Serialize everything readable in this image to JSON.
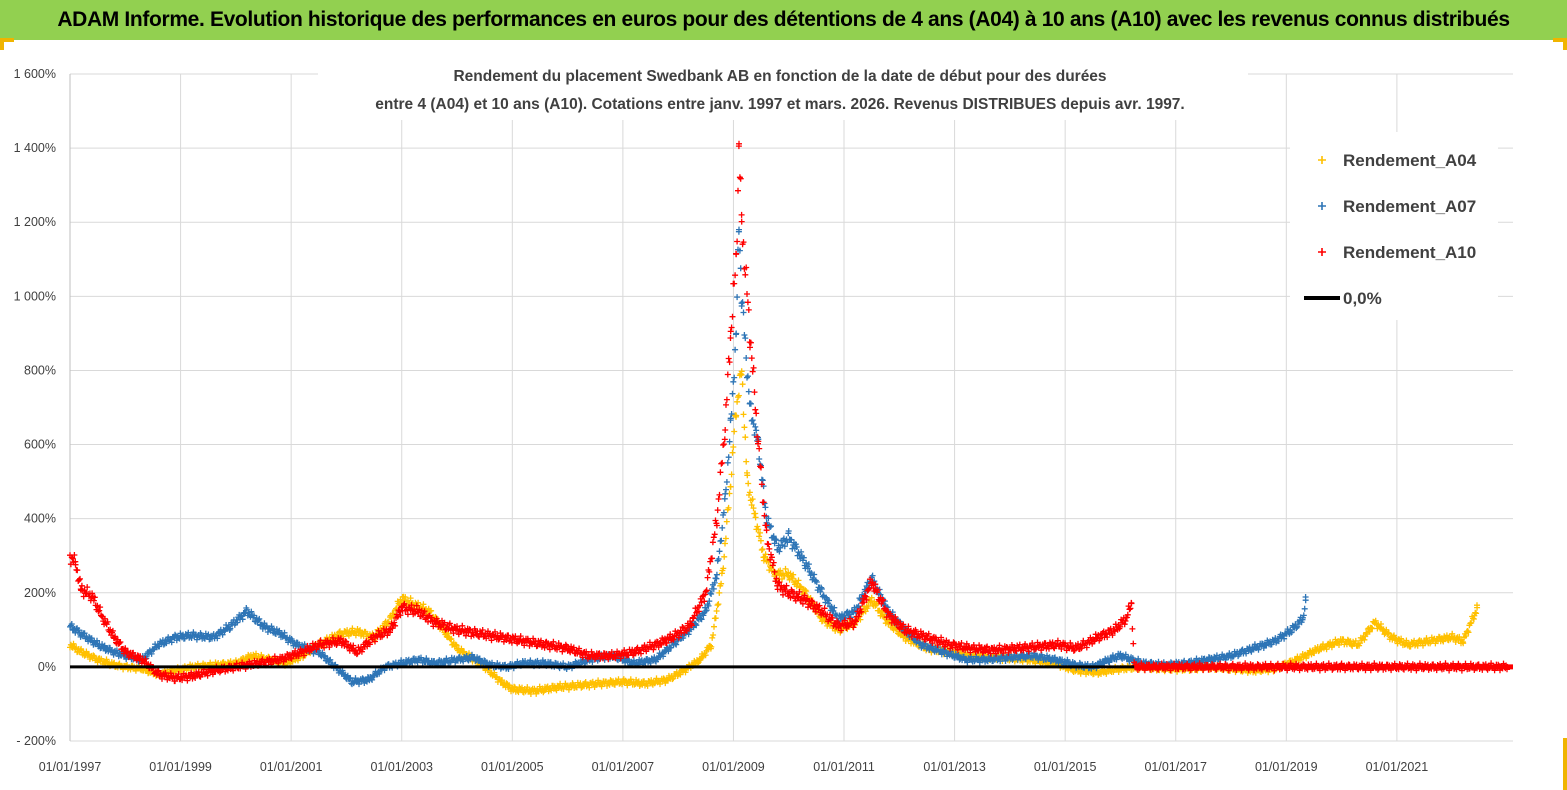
{
  "banner": {
    "title": "ADAM Informe. Evolution historique des performances en euros pour des détentions de 4 ans (A04) à 10 ans (A10) avec les revenus connus distribués"
  },
  "colors": {
    "banner_bg": "#92d050",
    "a04": "#ffc000",
    "a07": "#2e75b6",
    "a10": "#ff0000",
    "zero": "#000000",
    "grid": "#d9d9d9"
  },
  "chart_data": {
    "type": "scatter",
    "title_lines": [
      "Rendement du placement Swedbank AB en fonction de la date de début pour des durées",
      "entre 4 (A04) et 10 ans (A10). Cotations entre janv. 1997 et mars. 2026. Revenus DISTRIBUES depuis avr. 1997."
    ],
    "xlabel": "",
    "ylabel": "",
    "y_ticks": [
      -200,
      0,
      200,
      400,
      600,
      800,
      1000,
      1200,
      1400,
      1600
    ],
    "y_tick_labels": [
      "- 200%",
      "0%",
      "200%",
      "400%",
      "600%",
      "800%",
      "1 000%",
      "1 200%",
      "1 400%",
      "1 600%"
    ],
    "ylim": [
      -200,
      1600
    ],
    "x_ticks": [
      1997.0,
      1999.0,
      2001.0,
      2003.0,
      2005.0,
      2007.0,
      2009.0,
      2011.0,
      2013.0,
      2015.0,
      2017.0,
      2019.0,
      2021.0
    ],
    "x_tick_labels": [
      "01/01/1997",
      "01/01/1999",
      "01/01/2001",
      "01/01/2003",
      "01/01/2005",
      "01/01/2007",
      "01/01/2009",
      "01/01/2011",
      "01/01/2013",
      "01/01/2015",
      "01/01/2017",
      "01/01/2019",
      "01/01/2021"
    ],
    "xlim": [
      1997.0,
      2023.1
    ],
    "grid": true,
    "legend_position": "top-right",
    "series": [
      {
        "name": "Rendement_A04",
        "marker": "plus",
        "points": [
          [
            1997.0,
            60
          ],
          [
            1997.2,
            40
          ],
          [
            1997.5,
            20
          ],
          [
            1997.8,
            5
          ],
          [
            1998.0,
            0
          ],
          [
            1998.3,
            -5
          ],
          [
            1998.6,
            -20
          ],
          [
            1998.9,
            -10
          ],
          [
            1999.2,
            0
          ],
          [
            1999.6,
            5
          ],
          [
            2000.0,
            10
          ],
          [
            2000.3,
            30
          ],
          [
            2000.6,
            20
          ],
          [
            2000.9,
            10
          ],
          [
            2001.2,
            30
          ],
          [
            2001.5,
            60
          ],
          [
            2001.9,
            90
          ],
          [
            2002.2,
            95
          ],
          [
            2002.5,
            80
          ],
          [
            2002.8,
            130
          ],
          [
            2003.0,
            185
          ],
          [
            2003.2,
            170
          ],
          [
            2003.5,
            150
          ],
          [
            2003.8,
            90
          ],
          [
            2004.0,
            50
          ],
          [
            2004.2,
            30
          ],
          [
            2004.5,
            0
          ],
          [
            2004.8,
            -40
          ],
          [
            2005.0,
            -60
          ],
          [
            2005.4,
            -65
          ],
          [
            2005.8,
            -55
          ],
          [
            2006.2,
            -50
          ],
          [
            2006.6,
            -45
          ],
          [
            2007.0,
            -40
          ],
          [
            2007.4,
            -45
          ],
          [
            2007.8,
            -35
          ],
          [
            2008.1,
            -10
          ],
          [
            2008.4,
            20
          ],
          [
            2008.6,
            60
          ],
          [
            2008.8,
            250
          ],
          [
            2008.95,
            500
          ],
          [
            2009.05,
            700
          ],
          [
            2009.15,
            800
          ],
          [
            2009.25,
            500
          ],
          [
            2009.4,
            400
          ],
          [
            2009.55,
            300
          ],
          [
            2009.75,
            250
          ],
          [
            2010.0,
            250
          ],
          [
            2010.3,
            200
          ],
          [
            2010.6,
            130
          ],
          [
            2010.9,
            100
          ],
          [
            2011.2,
            120
          ],
          [
            2011.5,
            180
          ],
          [
            2011.8,
            120
          ],
          [
            2012.1,
            80
          ],
          [
            2012.5,
            50
          ],
          [
            2012.9,
            40
          ],
          [
            2013.3,
            30
          ],
          [
            2013.8,
            25
          ],
          [
            2014.3,
            20
          ],
          [
            2014.8,
            10
          ],
          [
            2015.2,
            -10
          ],
          [
            2015.6,
            -15
          ],
          [
            2016.0,
            -5
          ],
          [
            2016.4,
            0
          ],
          [
            2016.8,
            -5
          ],
          [
            2017.2,
            -5
          ],
          [
            2017.6,
            0
          ],
          [
            2018.0,
            -5
          ],
          [
            2018.4,
            -10
          ],
          [
            2018.8,
            -5
          ],
          [
            2019.2,
            20
          ],
          [
            2019.6,
            50
          ],
          [
            2020.0,
            70
          ],
          [
            2020.3,
            60
          ],
          [
            2020.6,
            120
          ],
          [
            2020.9,
            80
          ],
          [
            2021.2,
            60
          ],
          [
            2021.6,
            70
          ],
          [
            2022.0,
            80
          ],
          [
            2022.2,
            70
          ],
          [
            2022.4,
            140
          ],
          [
            2022.45,
            160
          ]
        ]
      },
      {
        "name": "Rendement_A07",
        "marker": "plus",
        "points": [
          [
            1997.0,
            110
          ],
          [
            1997.2,
            90
          ],
          [
            1997.5,
            60
          ],
          [
            1997.8,
            40
          ],
          [
            1998.0,
            30
          ],
          [
            1998.3,
            20
          ],
          [
            1998.6,
            60
          ],
          [
            1998.9,
            80
          ],
          [
            1999.2,
            85
          ],
          [
            1999.6,
            80
          ],
          [
            1999.9,
            110
          ],
          [
            2000.2,
            150
          ],
          [
            2000.5,
            110
          ],
          [
            2000.8,
            90
          ],
          [
            2001.1,
            60
          ],
          [
            2001.5,
            40
          ],
          [
            2001.8,
            0
          ],
          [
            2002.1,
            -40
          ],
          [
            2002.4,
            -35
          ],
          [
            2002.7,
            0
          ],
          [
            2003.0,
            10
          ],
          [
            2003.3,
            20
          ],
          [
            2003.6,
            10
          ],
          [
            2004.0,
            20
          ],
          [
            2004.3,
            25
          ],
          [
            2004.6,
            5
          ],
          [
            2004.9,
            0
          ],
          [
            2005.2,
            10
          ],
          [
            2005.6,
            10
          ],
          [
            2006.0,
            0
          ],
          [
            2006.4,
            20
          ],
          [
            2006.8,
            30
          ],
          [
            2007.2,
            10
          ],
          [
            2007.6,
            20
          ],
          [
            2007.9,
            60
          ],
          [
            2008.2,
            100
          ],
          [
            2008.5,
            150
          ],
          [
            2008.7,
            250
          ],
          [
            2008.85,
            450
          ],
          [
            2008.95,
            650
          ],
          [
            2009.05,
            900
          ],
          [
            2009.1,
            1200
          ],
          [
            2009.15,
            1000
          ],
          [
            2009.3,
            700
          ],
          [
            2009.45,
            600
          ],
          [
            2009.6,
            400
          ],
          [
            2009.8,
            320
          ],
          [
            2010.0,
            350
          ],
          [
            2010.3,
            280
          ],
          [
            2010.6,
            200
          ],
          [
            2010.9,
            130
          ],
          [
            2011.2,
            150
          ],
          [
            2011.5,
            240
          ],
          [
            2011.8,
            150
          ],
          [
            2012.1,
            100
          ],
          [
            2012.4,
            60
          ],
          [
            2012.8,
            40
          ],
          [
            2013.2,
            20
          ],
          [
            2013.6,
            20
          ],
          [
            2014.0,
            25
          ],
          [
            2014.4,
            30
          ],
          [
            2014.8,
            20
          ],
          [
            2015.2,
            5
          ],
          [
            2015.5,
            0
          ],
          [
            2015.8,
            20
          ],
          [
            2016.0,
            30
          ],
          [
            2016.4,
            10
          ],
          [
            2016.8,
            5
          ],
          [
            2017.2,
            10
          ],
          [
            2017.6,
            20
          ],
          [
            2018.0,
            30
          ],
          [
            2018.4,
            50
          ],
          [
            2018.8,
            70
          ],
          [
            2019.1,
            100
          ],
          [
            2019.3,
            130
          ],
          [
            2019.35,
            180
          ]
        ]
      },
      {
        "name": "Rendement_A10",
        "marker": "plus",
        "points": [
          [
            1997.0,
            300
          ],
          [
            1997.1,
            280
          ],
          [
            1997.2,
            210
          ],
          [
            1997.4,
            190
          ],
          [
            1997.6,
            130
          ],
          [
            1997.8,
            80
          ],
          [
            1998.0,
            40
          ],
          [
            1998.3,
            20
          ],
          [
            1998.6,
            -20
          ],
          [
            1998.9,
            -30
          ],
          [
            1999.2,
            -25
          ],
          [
            1999.6,
            -10
          ],
          [
            2000.0,
            0
          ],
          [
            2000.4,
            10
          ],
          [
            2000.8,
            20
          ],
          [
            2001.2,
            40
          ],
          [
            2001.5,
            60
          ],
          [
            2001.9,
            70
          ],
          [
            2002.2,
            40
          ],
          [
            2002.5,
            80
          ],
          [
            2002.8,
            100
          ],
          [
            2003.0,
            160
          ],
          [
            2003.3,
            150
          ],
          [
            2003.6,
            120
          ],
          [
            2004.0,
            100
          ],
          [
            2004.4,
            90
          ],
          [
            2004.8,
            80
          ],
          [
            2005.2,
            70
          ],
          [
            2005.6,
            60
          ],
          [
            2006.0,
            50
          ],
          [
            2006.4,
            30
          ],
          [
            2006.8,
            30
          ],
          [
            2007.2,
            40
          ],
          [
            2007.6,
            60
          ],
          [
            2007.9,
            80
          ],
          [
            2008.2,
            110
          ],
          [
            2008.5,
            200
          ],
          [
            2008.7,
            400
          ],
          [
            2008.85,
            650
          ],
          [
            2008.95,
            900
          ],
          [
            2009.05,
            1100
          ],
          [
            2009.1,
            1400
          ],
          [
            2009.15,
            1200
          ],
          [
            2009.3,
            900
          ],
          [
            2009.45,
            600
          ],
          [
            2009.6,
            350
          ],
          [
            2009.8,
            220
          ],
          [
            2010.0,
            200
          ],
          [
            2010.3,
            180
          ],
          [
            2010.6,
            150
          ],
          [
            2010.9,
            110
          ],
          [
            2011.2,
            120
          ],
          [
            2011.5,
            230
          ],
          [
            2011.8,
            140
          ],
          [
            2012.1,
            100
          ],
          [
            2012.5,
            80
          ],
          [
            2012.9,
            60
          ],
          [
            2013.3,
            50
          ],
          [
            2013.7,
            45
          ],
          [
            2014.1,
            50
          ],
          [
            2014.5,
            55
          ],
          [
            2014.9,
            60
          ],
          [
            2015.2,
            50
          ],
          [
            2015.6,
            80
          ],
          [
            2015.9,
            100
          ],
          [
            2016.1,
            130
          ],
          [
            2016.2,
            170
          ],
          [
            2016.25,
            0
          ],
          [
            2017.0,
            0
          ],
          [
            2018.0,
            0
          ],
          [
            2019.0,
            0
          ],
          [
            2020.0,
            0
          ],
          [
            2021.0,
            0
          ],
          [
            2022.0,
            0
          ],
          [
            2023.0,
            0
          ]
        ]
      },
      {
        "name": "0,0%",
        "marker": "line",
        "points": [
          [
            1997.0,
            0
          ],
          [
            2016.25,
            0
          ]
        ]
      }
    ]
  }
}
